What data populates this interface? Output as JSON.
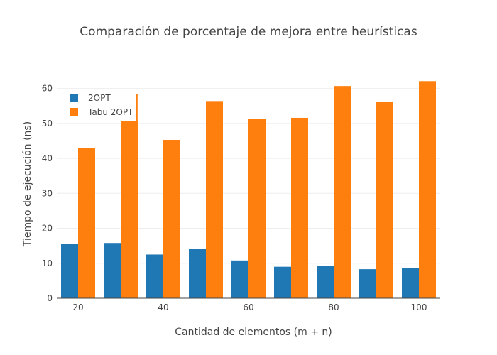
{
  "chart_data": {
    "type": "bar",
    "title": "Comparación de porcentaje de mejora entre heurísticas",
    "xlabel": "Cantidad de elementos (m + n)",
    "ylabel": "Tiempo de ejecución (ns)",
    "x": [
      20,
      30,
      40,
      50,
      60,
      70,
      80,
      90,
      100
    ],
    "xticks": [
      20,
      40,
      60,
      80,
      100
    ],
    "xlim": [
      15,
      105
    ],
    "ylim": [
      0,
      65
    ],
    "yticks": [
      0,
      10,
      20,
      30,
      40,
      50,
      60
    ],
    "grid": true,
    "legend": "top-left",
    "series": [
      {
        "name": "2OPT",
        "color": "#1f77b4",
        "values": [
          15.6,
          15.8,
          12.5,
          14.2,
          10.8,
          9.0,
          9.3,
          8.3,
          8.7
        ]
      },
      {
        "name": "Tabu 2OPT",
        "color": "#ff7f0e",
        "values": [
          42.9,
          50.6,
          45.3,
          56.4,
          51.2,
          51.6,
          60.7,
          56.1,
          62.1
        ]
      }
    ],
    "annotations": [
      {
        "type": "error-line",
        "x": 30,
        "series": "Tabu 2OPT",
        "from": 50.6,
        "to": 58.3,
        "color": "#ff7f0e"
      }
    ]
  }
}
